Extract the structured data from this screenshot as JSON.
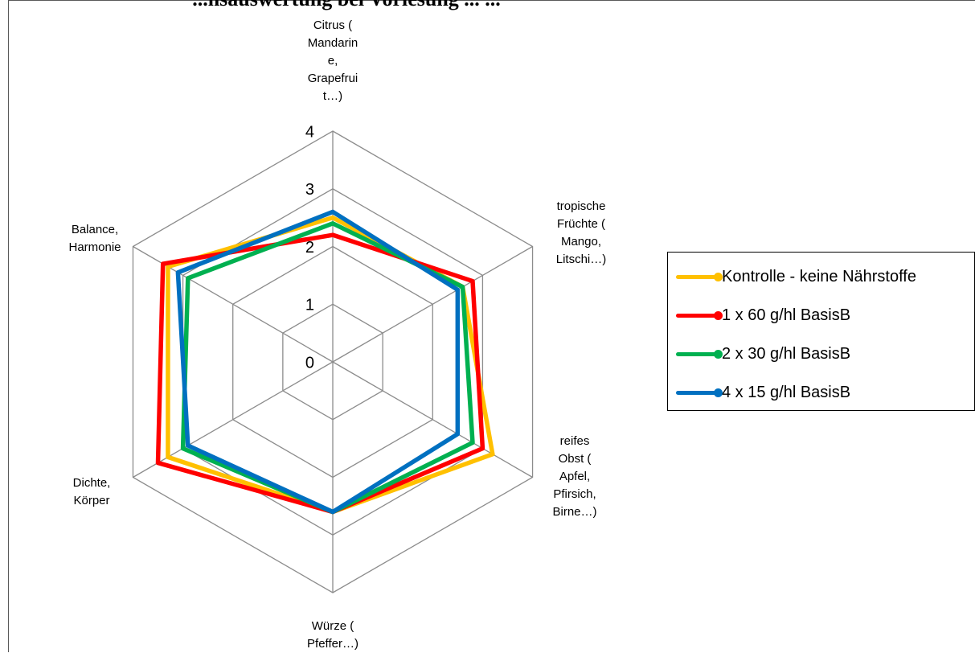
{
  "chart_data": {
    "type": "radar",
    "title": "...nsauswertung bei Vorlesung ... ...",
    "categories": [
      [
        "Citrus (",
        "Mandarin",
        "e,",
        "Grapefrui",
        "t…)"
      ],
      [
        "tropische",
        "Früchte (",
        "Mango,",
        "Litschi…)"
      ],
      [
        "reifes",
        "Obst (",
        "Apfel,",
        "Pfirsich,",
        "Birne…)"
      ],
      [
        "Würze (",
        "Pfeffer…)"
      ],
      [
        "Dichte,",
        "Körper"
      ],
      [
        "Balance,",
        "Harmonie"
      ]
    ],
    "rlim": [
      0,
      4
    ],
    "rticks": [
      "0",
      "1",
      "2",
      "3",
      "4"
    ],
    "grid": true,
    "legend_position": "right",
    "series": [
      {
        "name": "Kontrolle - keine Nährstoffe",
        "color": "#FFC000",
        "values": [
          2.5,
          2.6,
          3.2,
          2.6,
          3.3,
          3.3
        ]
      },
      {
        "name": "1 x 60 g/hl BasisB",
        "color": "#FF0000",
        "values": [
          2.2,
          2.8,
          3.0,
          2.6,
          3.5,
          3.4
        ]
      },
      {
        "name": "2 x 30 g/hl BasisB",
        "color": "#00B050",
        "values": [
          2.4,
          2.6,
          2.8,
          2.6,
          3.0,
          2.9
        ]
      },
      {
        "name": "4 x 15 g/hl BasisB",
        "color": "#0070C0",
        "values": [
          2.6,
          2.5,
          2.5,
          2.6,
          2.9,
          3.1
        ]
      }
    ]
  }
}
